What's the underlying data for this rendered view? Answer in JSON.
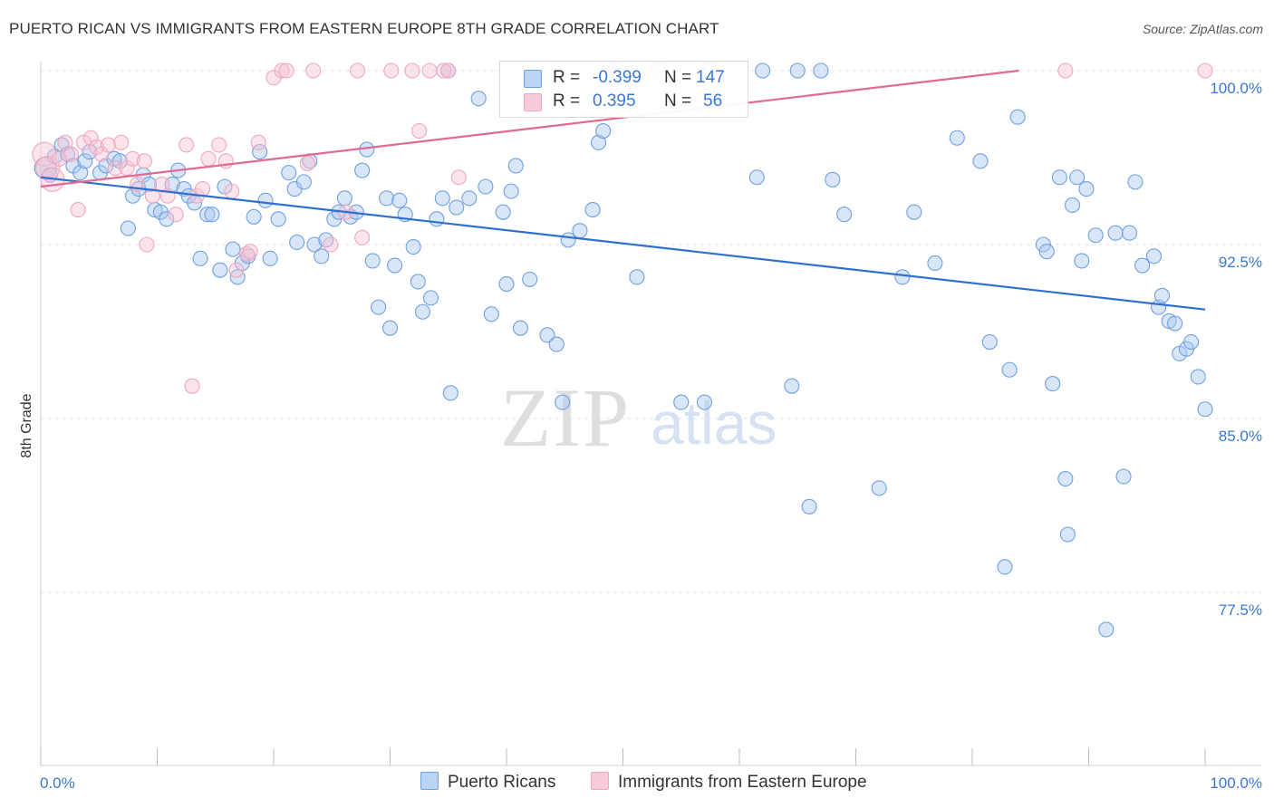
{
  "title": "PUERTO RICAN VS IMMIGRANTS FROM EASTERN EUROPE 8TH GRADE CORRELATION CHART",
  "source": "Source: ZipAtlas.com",
  "watermark": {
    "zip": "ZIP",
    "atlas": "atlas"
  },
  "colors": {
    "blue": "#6fa0e0",
    "blue_fill": "#a9c7ef",
    "blue_line": "#2f6fd0",
    "pink": "#f0a7bd",
    "pink_fill": "#f6c4d3",
    "pink_line": "#e06a92",
    "tick_label": "#3a78d0"
  },
  "legend": {
    "r_label": "R =",
    "n_label": "N =",
    "rows": [
      {
        "r": "-0.399",
        "n": "147"
      },
      {
        "r": "0.395",
        "n": "56"
      }
    ]
  },
  "bottom_legend": [
    "Puerto Ricans",
    "Immigrants from Eastern Europe"
  ],
  "chart_data": {
    "type": "scatter",
    "title": "PUERTO RICAN VS IMMIGRANTS FROM EASTERN EUROPE 8TH GRADE CORRELATION CHART",
    "xlabel": "",
    "ylabel": "8th Grade",
    "xlim": [
      0,
      100
    ],
    "ylim": [
      70.0,
      101.0
    ],
    "x_tick_labels": [
      "0.0%",
      "100.0%"
    ],
    "y_ticks": [
      77.5,
      85.0,
      92.5,
      100.0
    ],
    "y_tick_labels": [
      "77.5%",
      "85.0%",
      "92.5%",
      "100.0%"
    ],
    "grid": "horizontal dashed",
    "legend_position": "top-center",
    "series": [
      {
        "name": "Puerto Ricans",
        "r": -0.399,
        "n": 147,
        "trend": [
          [
            0,
            95.4
          ],
          [
            100,
            89.7
          ]
        ],
        "points": [
          [
            0.4,
            95.8
          ],
          [
            0.8,
            95.5
          ],
          [
            1.2,
            96.3
          ],
          [
            1.8,
            96.8
          ],
          [
            2.3,
            96.4
          ],
          [
            2.8,
            95.9
          ],
          [
            3.4,
            95.6
          ],
          [
            3.8,
            96.1
          ],
          [
            4.2,
            96.5
          ],
          [
            5.1,
            95.6
          ],
          [
            5.6,
            95.9
          ],
          [
            6.3,
            96.2
          ],
          [
            6.8,
            96.1
          ],
          [
            7.5,
            93.2
          ],
          [
            7.9,
            94.6
          ],
          [
            8.4,
            94.9
          ],
          [
            8.8,
            95.5
          ],
          [
            9.3,
            95.1
          ],
          [
            9.8,
            94.0
          ],
          [
            10.3,
            93.9
          ],
          [
            10.8,
            93.6
          ],
          [
            11.3,
            95.1
          ],
          [
            11.8,
            95.7
          ],
          [
            12.3,
            94.9
          ],
          [
            12.7,
            94.6
          ],
          [
            13.2,
            94.3
          ],
          [
            13.7,
            91.9
          ],
          [
            14.3,
            93.8
          ],
          [
            14.7,
            93.8
          ],
          [
            15.4,
            91.4
          ],
          [
            15.8,
            95.0
          ],
          [
            16.5,
            92.3
          ],
          [
            16.9,
            91.1
          ],
          [
            17.3,
            91.7
          ],
          [
            17.8,
            92.0
          ],
          [
            18.3,
            93.7
          ],
          [
            18.8,
            96.5
          ],
          [
            19.3,
            94.4
          ],
          [
            19.7,
            91.9
          ],
          [
            20.4,
            93.6
          ],
          [
            21.3,
            95.6
          ],
          [
            21.8,
            94.9
          ],
          [
            22.0,
            92.6
          ],
          [
            22.6,
            95.2
          ],
          [
            23.1,
            96.1
          ],
          [
            23.5,
            92.5
          ],
          [
            24.1,
            92.0
          ],
          [
            24.5,
            92.7
          ],
          [
            25.2,
            93.6
          ],
          [
            25.6,
            93.9
          ],
          [
            26.1,
            94.5
          ],
          [
            26.6,
            93.7
          ],
          [
            27.1,
            93.9
          ],
          [
            27.6,
            95.7
          ],
          [
            28.0,
            96.6
          ],
          [
            28.5,
            91.8
          ],
          [
            29.0,
            89.8
          ],
          [
            29.7,
            94.5
          ],
          [
            30.0,
            88.9
          ],
          [
            30.4,
            91.6
          ],
          [
            30.8,
            94.4
          ],
          [
            31.3,
            93.8
          ],
          [
            32.0,
            92.4
          ],
          [
            32.4,
            90.9
          ],
          [
            32.8,
            89.6
          ],
          [
            33.5,
            90.2
          ],
          [
            34.0,
            93.6
          ],
          [
            34.5,
            94.5
          ],
          [
            35.0,
            100.0
          ],
          [
            35.2,
            86.1
          ],
          [
            35.7,
            94.1
          ],
          [
            36.8,
            94.5
          ],
          [
            37.6,
            98.8
          ],
          [
            38.2,
            95.0
          ],
          [
            38.7,
            89.5
          ],
          [
            39.7,
            93.9
          ],
          [
            40.0,
            90.8
          ],
          [
            40.4,
            94.8
          ],
          [
            40.8,
            95.9
          ],
          [
            41.2,
            88.9
          ],
          [
            42.0,
            91.0
          ],
          [
            43.5,
            88.6
          ],
          [
            44.3,
            88.2
          ],
          [
            44.8,
            85.7
          ],
          [
            45.3,
            92.7
          ],
          [
            46.3,
            93.1
          ],
          [
            47.4,
            94.0
          ],
          [
            47.9,
            96.9
          ],
          [
            48.3,
            97.4
          ],
          [
            49.2,
            100.0
          ],
          [
            51.2,
            91.1
          ],
          [
            53.0,
            100.0
          ],
          [
            55.0,
            85.7
          ],
          [
            57.0,
            85.7
          ],
          [
            57.5,
            100.0
          ],
          [
            61.5,
            95.4
          ],
          [
            62.0,
            100.0
          ],
          [
            64.5,
            86.4
          ],
          [
            65.0,
            100.0
          ],
          [
            66.0,
            81.2
          ],
          [
            67.0,
            100.0
          ],
          [
            68.0,
            95.3
          ],
          [
            69.0,
            93.8
          ],
          [
            72.0,
            82.0
          ],
          [
            74.0,
            91.1
          ],
          [
            75.0,
            93.9
          ],
          [
            76.8,
            91.7
          ],
          [
            78.7,
            97.1
          ],
          [
            80.7,
            96.1
          ],
          [
            81.5,
            88.3
          ],
          [
            82.8,
            78.6
          ],
          [
            83.2,
            87.1
          ],
          [
            83.9,
            98.0
          ],
          [
            86.1,
            92.5
          ],
          [
            86.4,
            92.2
          ],
          [
            86.9,
            86.5
          ],
          [
            87.5,
            95.4
          ],
          [
            88.0,
            82.4
          ],
          [
            88.2,
            80.0
          ],
          [
            88.6,
            94.2
          ],
          [
            89.0,
            95.4
          ],
          [
            89.4,
            91.8
          ],
          [
            89.8,
            94.9
          ],
          [
            90.6,
            92.9
          ],
          [
            91.5,
            75.9
          ],
          [
            92.3,
            93.0
          ],
          [
            93.0,
            82.5
          ],
          [
            93.5,
            93.0
          ],
          [
            94.0,
            95.2
          ],
          [
            94.6,
            91.6
          ],
          [
            95.6,
            92.0
          ],
          [
            96.0,
            89.8
          ],
          [
            96.3,
            90.3
          ],
          [
            96.9,
            89.2
          ],
          [
            97.4,
            89.1
          ],
          [
            97.8,
            87.8
          ],
          [
            98.4,
            88.0
          ],
          [
            98.8,
            88.3
          ],
          [
            99.4,
            86.8
          ],
          [
            100.0,
            85.4
          ]
        ]
      },
      {
        "name": "Immigrants from Eastern Europe",
        "r": 0.395,
        "n": 56,
        "trend": [
          [
            0,
            95.0
          ],
          [
            84,
            100.0
          ]
        ],
        "points": [
          [
            0.3,
            96.4
          ],
          [
            0.6,
            95.8
          ],
          [
            1.0,
            95.3
          ],
          [
            1.6,
            96.2
          ],
          [
            2.1,
            96.9
          ],
          [
            2.6,
            96.4
          ],
          [
            3.2,
            94.0
          ],
          [
            3.7,
            96.9
          ],
          [
            4.3,
            97.1
          ],
          [
            4.8,
            96.7
          ],
          [
            5.2,
            96.4
          ],
          [
            5.8,
            96.8
          ],
          [
            6.4,
            95.8
          ],
          [
            6.9,
            96.9
          ],
          [
            7.4,
            95.8
          ],
          [
            7.9,
            96.2
          ],
          [
            8.3,
            95.1
          ],
          [
            8.9,
            96.1
          ],
          [
            9.1,
            92.5
          ],
          [
            9.6,
            94.6
          ],
          [
            10.4,
            95.1
          ],
          [
            10.9,
            94.6
          ],
          [
            11.6,
            93.8
          ],
          [
            12.5,
            96.8
          ],
          [
            13.0,
            86.4
          ],
          [
            13.4,
            94.6
          ],
          [
            13.9,
            94.9
          ],
          [
            14.4,
            96.2
          ],
          [
            15.3,
            96.8
          ],
          [
            15.9,
            96.1
          ],
          [
            16.4,
            94.8
          ],
          [
            16.8,
            91.4
          ],
          [
            17.7,
            92.1
          ],
          [
            18.0,
            92.2
          ],
          [
            18.7,
            96.9
          ],
          [
            20.0,
            99.7
          ],
          [
            20.7,
            100.0
          ],
          [
            21.1,
            100.0
          ],
          [
            22.9,
            96.0
          ],
          [
            23.4,
            100.0
          ],
          [
            24.9,
            92.5
          ],
          [
            26.2,
            93.9
          ],
          [
            27.2,
            100.0
          ],
          [
            27.6,
            92.8
          ],
          [
            30.1,
            100.0
          ],
          [
            31.9,
            100.0
          ],
          [
            32.5,
            97.4
          ],
          [
            33.4,
            100.0
          ],
          [
            34.6,
            100.0
          ],
          [
            35.0,
            100.0
          ],
          [
            35.9,
            95.4
          ],
          [
            88.0,
            100.0
          ],
          [
            100.0,
            100.0
          ]
        ]
      }
    ]
  }
}
